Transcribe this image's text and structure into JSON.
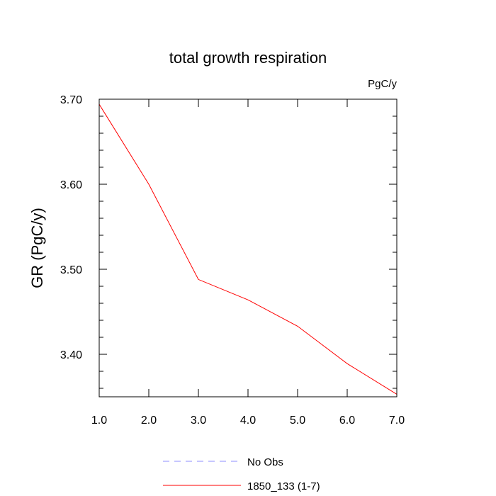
{
  "chart_data": {
    "type": "line",
    "title": "total growth respiration",
    "units": "PgC/y",
    "xlabel": "",
    "ylabel": "GR  (PgC/y)",
    "xlim": [
      1.0,
      7.0
    ],
    "ylim": [
      3.35,
      3.7
    ],
    "xticks": [
      "1.0",
      "2.0",
      "3.0",
      "4.0",
      "5.0",
      "6.0",
      "7.0"
    ],
    "yticks": [
      "3.40",
      "3.50",
      "3.60",
      "3.70"
    ],
    "x": [
      1,
      2,
      3,
      4,
      5,
      6,
      7
    ],
    "series": [
      {
        "name": "1850_133 (1-7)",
        "color": "#ff0000",
        "style": "solid",
        "values": [
          3.694,
          3.6,
          3.488,
          3.464,
          3.433,
          3.389,
          3.353
        ]
      }
    ],
    "legend": [
      {
        "label": "No Obs",
        "color": "#8c8cff",
        "style": "dashed"
      },
      {
        "label": "1850_133 (1-7)",
        "color": "#ff0000",
        "style": "solid"
      }
    ]
  }
}
